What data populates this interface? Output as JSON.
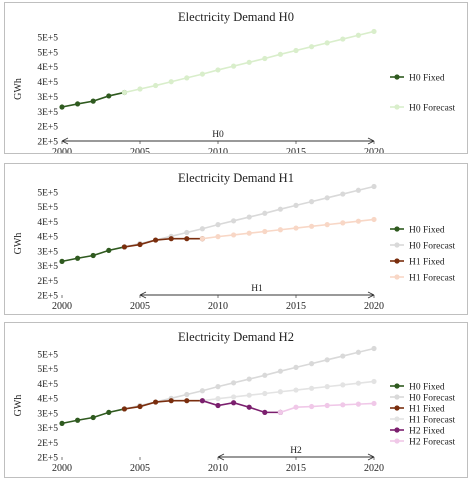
{
  "chart_data": [
    {
      "type": "line",
      "title": "Electricity  Demand H0",
      "ylabel": "GWh",
      "ylim": [
        200000,
        500000
      ],
      "yticks": [
        "2E+5",
        "2E+5",
        "3E+5",
        "3E+5",
        "4E+5",
        "4E+5",
        "5E+5",
        "5E+5"
      ],
      "xlim": [
        2000,
        2020
      ],
      "xticks": [
        2000,
        2005,
        2010,
        2015,
        2020
      ],
      "legend_position": "right",
      "annotation": {
        "label": "H0",
        "from": 2000,
        "to": 2020
      },
      "series": [
        {
          "name": "H0 Fixed",
          "color": "#2f5a1f",
          "x": [
            2000,
            2001,
            2002,
            2003,
            2004
          ],
          "y": [
            298000,
            307000,
            315000,
            330000,
            340000
          ]
        },
        {
          "name": "H0 Forecast",
          "color": "#d9eecb",
          "x": [
            2004,
            2005,
            2006,
            2007,
            2008,
            2009,
            2010,
            2011,
            2012,
            2013,
            2014,
            2015,
            2016,
            2017,
            2018,
            2019,
            2020
          ],
          "y": [
            340000,
            350000,
            360000,
            371000,
            382000,
            393000,
            405000,
            416000,
            427000,
            438000,
            450000,
            461000,
            472000,
            483000,
            494000,
            505000,
            516000
          ]
        }
      ]
    },
    {
      "type": "line",
      "title": "Electricity  Demand H1",
      "ylabel": "GWh",
      "ylim": [
        200000,
        500000
      ],
      "yticks": [
        "2E+5",
        "2E+5",
        "3E+5",
        "3E+5",
        "4E+5",
        "4E+5",
        "5E+5",
        "5E+5"
      ],
      "xlim": [
        2000,
        2020
      ],
      "xticks": [
        2000,
        2005,
        2010,
        2015,
        2020
      ],
      "legend_position": "right",
      "annotation": {
        "label": "H1",
        "from": 2005,
        "to": 2020
      },
      "series": [
        {
          "name": "H0 Fixed",
          "color": "#2f5a1f",
          "x": [
            2000,
            2001,
            2002,
            2003,
            2004
          ],
          "y": [
            298000,
            307000,
            315000,
            330000,
            340000
          ]
        },
        {
          "name": "H0 Forecast",
          "color": "#d9d9d9",
          "x": [
            2004,
            2005,
            2006,
            2007,
            2008,
            2009,
            2010,
            2011,
            2012,
            2013,
            2014,
            2015,
            2016,
            2017,
            2018,
            2019,
            2020
          ],
          "y": [
            340000,
            350000,
            360000,
            371000,
            382000,
            393000,
            405000,
            416000,
            427000,
            438000,
            450000,
            461000,
            472000,
            483000,
            494000,
            505000,
            516000
          ]
        },
        {
          "name": "H1 Fixed",
          "color": "#7a2e0e",
          "x": [
            2004,
            2005,
            2006,
            2007,
            2008,
            2009
          ],
          "y": [
            340000,
            347000,
            360000,
            364000,
            364000,
            364000
          ]
        },
        {
          "name": "H1 Forecast",
          "color": "#f8d7c6",
          "x": [
            2009,
            2010,
            2011,
            2012,
            2013,
            2014,
            2015,
            2016,
            2017,
            2018,
            2019,
            2020
          ],
          "y": [
            364000,
            370000,
            375000,
            380000,
            385000,
            390000,
            395000,
            400000,
            405000,
            410000,
            415000,
            420000
          ]
        }
      ]
    },
    {
      "type": "line",
      "title": "Electricity  Demand H2",
      "ylabel": "GWh",
      "ylim": [
        200000,
        500000
      ],
      "yticks": [
        "2E+5",
        "2E+5",
        "3E+5",
        "3E+5",
        "4E+5",
        "4E+5",
        "5E+5",
        "5E+5"
      ],
      "xlim": [
        2000,
        2020
      ],
      "xticks": [
        2000,
        2005,
        2010,
        2015,
        2020
      ],
      "legend_position": "right",
      "annotation": {
        "label": "H2",
        "from": 2010,
        "to": 2020
      },
      "series": [
        {
          "name": "H0 Fixed",
          "color": "#2f5a1f",
          "x": [
            2000,
            2001,
            2002,
            2003,
            2004
          ],
          "y": [
            298000,
            307000,
            315000,
            330000,
            340000
          ]
        },
        {
          "name": "H0 Forecast",
          "color": "#d9d9d9",
          "x": [
            2004,
            2005,
            2006,
            2007,
            2008,
            2009,
            2010,
            2011,
            2012,
            2013,
            2014,
            2015,
            2016,
            2017,
            2018,
            2019,
            2020
          ],
          "y": [
            340000,
            350000,
            360000,
            371000,
            382000,
            393000,
            405000,
            416000,
            427000,
            438000,
            450000,
            461000,
            472000,
            483000,
            494000,
            505000,
            516000
          ]
        },
        {
          "name": "H1 Fixed",
          "color": "#7a2e0e",
          "x": [
            2004,
            2005,
            2006,
            2007,
            2008,
            2009
          ],
          "y": [
            340000,
            347000,
            360000,
            364000,
            364000,
            364000
          ]
        },
        {
          "name": "H1 Forecast",
          "color": "#e3e3e3",
          "x": [
            2009,
            2010,
            2011,
            2012,
            2013,
            2014,
            2015,
            2016,
            2017,
            2018,
            2019,
            2020
          ],
          "y": [
            364000,
            370000,
            375000,
            380000,
            385000,
            390000,
            395000,
            400000,
            405000,
            410000,
            415000,
            420000
          ]
        },
        {
          "name": "H2 Fixed",
          "color": "#7b1f6e",
          "x": [
            2009,
            2010,
            2011,
            2012,
            2013,
            2014
          ],
          "y": [
            364000,
            350000,
            358000,
            345000,
            330000,
            330000
          ]
        },
        {
          "name": "H2 Forecast",
          "color": "#f0c8e8",
          "x": [
            2014,
            2015,
            2016,
            2017,
            2018,
            2019,
            2020
          ],
          "y": [
            330000,
            345000,
            347000,
            350000,
            352000,
            354000,
            356000
          ]
        }
      ]
    }
  ]
}
